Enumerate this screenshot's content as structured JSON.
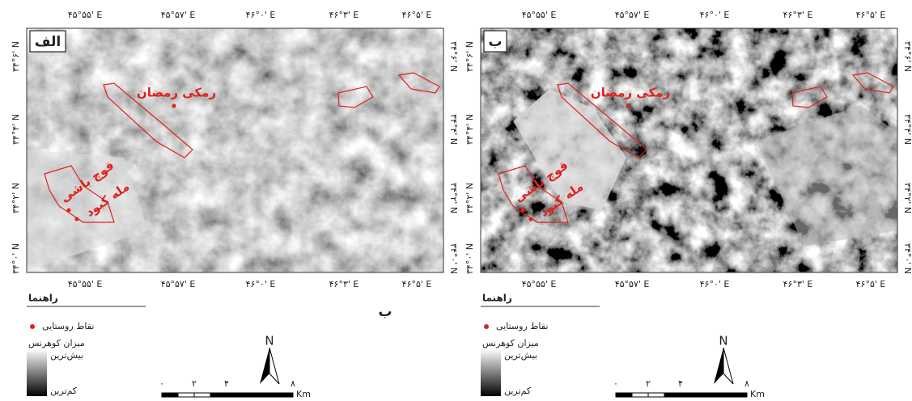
{
  "panels": [
    {
      "label": "الف",
      "places": [
        "رمکی رمضان",
        "قوچ باشی",
        "مله کبود"
      ],
      "top_ticks": [
        "۴۵°۵۵' E",
        "۴۵°۵۷' E",
        "۴۶°۰' E",
        "۴۶°۳' E",
        "۴۶°۵' E"
      ],
      "bottom_ticks": [
        "۴۵°۵۵' E",
        "۴۵°۵۷' E",
        "۴۶°۰' E",
        "۴۶°۳' E",
        "۴۶°۵' E"
      ],
      "left_ticks": [
        "۳۴°۶' N",
        "۳۴°۴' N",
        "۳۴°۲' N",
        "۳۴°۰' N"
      ],
      "right_ticks": [
        "۳۴°۶' N",
        "۳۴°۴' N",
        "۳۴°۲' N",
        "۳۴°۰' N"
      ],
      "legend": {
        "title": "راهنما",
        "villages": "نقاط روستایی",
        "coherence": "میزان کوهرنس",
        "high": "بیش‌ترین",
        "low": "کم‌ترین"
      },
      "north": "N",
      "scale": [
        "۰",
        "۲",
        "۴",
        "۸"
      ],
      "scale_unit": "Km"
    },
    {
      "label": "ب",
      "places": [
        "رمکی رمضان",
        "قوچ باشی",
        "مله کبود"
      ],
      "top_ticks": [
        "۴۵°۵۵' E",
        "۴۵°۵۷' E",
        "۴۶°۰' E",
        "۴۶°۳' E",
        "۴۶°۵' E"
      ],
      "bottom_ticks": [
        "۴۵°۵۵' E",
        "۴۵°۵۷' E",
        "۴۶°۰' E",
        "۴۶°۳' E",
        "۴۶°۵' E"
      ],
      "left_ticks": [
        "۳۴°۶' N",
        "۳۴°۴' N",
        "۳۴°۲' N",
        "۳۴°۰' N"
      ],
      "right_ticks": [
        "۳۴°۶' N",
        "۳۴°۴' N",
        "۳۴°۲' N",
        "۳۴°۰' N"
      ],
      "legend": {
        "title": "راهنما",
        "villages": "نقاط روستایی",
        "coherence": "میزان کوهرنس",
        "high": "بیش‌ترین",
        "low": "کم‌ترین"
      },
      "north": "N",
      "scale": [
        "۰",
        "۲",
        "۴",
        "۸"
      ],
      "scale_unit": "Km"
    }
  ],
  "stray_label": "ب"
}
